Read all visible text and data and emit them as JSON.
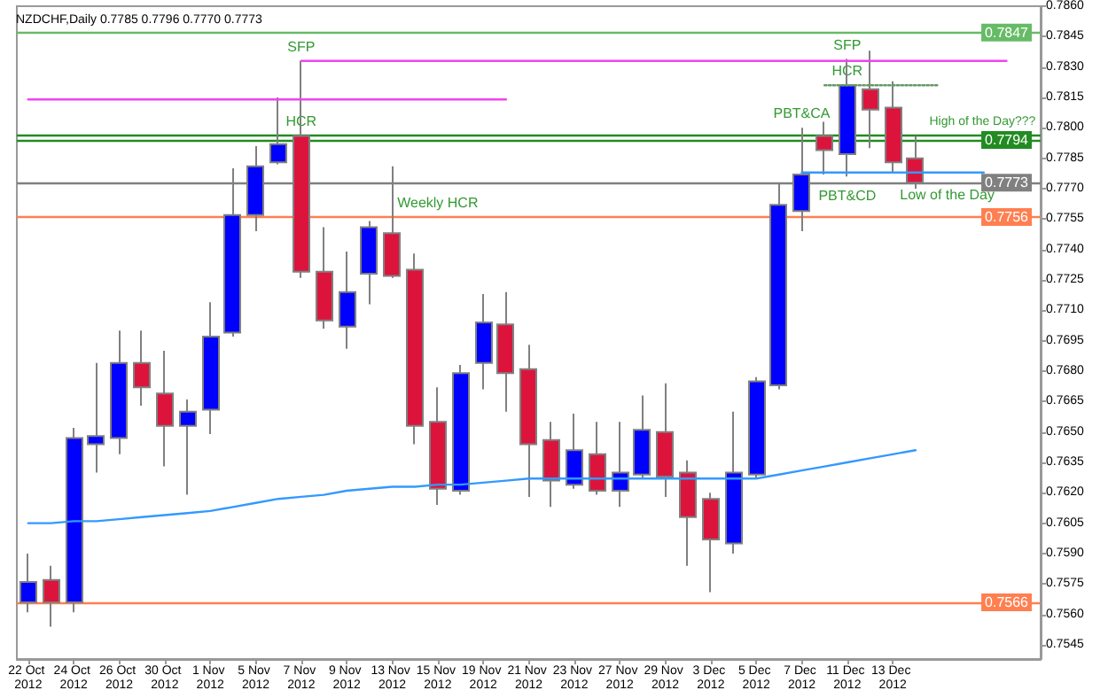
{
  "chart_data": {
    "type": "candlestick",
    "title": "NZDCHF,Daily 0.7785 0.7796 0.7770 0.7773",
    "categories": [
      "22 Oct 2012",
      null,
      "24 Oct 2012",
      null,
      "26 Oct 2012",
      null,
      "30 Oct 2012",
      null,
      "1 Nov 2012",
      null,
      "5 Nov 2012",
      null,
      "7 Nov 2012",
      null,
      "9 Nov 2012",
      null,
      "13 Nov 2012",
      null,
      "15 Nov 2012",
      null,
      "19 Nov 2012",
      null,
      "21 Nov 2012",
      null,
      "23 Nov 2012",
      null,
      "27 Nov 2012",
      null,
      "29 Nov 2012",
      null,
      "3 Dec 2012",
      null,
      "5 Dec 2012",
      null,
      "7 Dec 2012",
      null,
      "11 Dec 2012",
      null,
      "13 Dec 2012",
      null,
      null,
      null,
      null,
      null,
      null
    ],
    "ohlc": [
      [
        0.7566,
        0.759,
        0.7561,
        0.7576
      ],
      [
        0.7577,
        0.7584,
        0.7554,
        0.7566
      ],
      [
        0.7566,
        0.7652,
        0.7561,
        0.7647
      ],
      [
        0.7644,
        0.7684,
        0.763,
        0.7648
      ],
      [
        0.7647,
        0.77,
        0.7639,
        0.7684
      ],
      [
        0.7684,
        0.77,
        0.7663,
        0.7672
      ],
      [
        0.7669,
        0.769,
        0.7633,
        0.7653
      ],
      [
        0.7653,
        0.7666,
        0.7619,
        0.766
      ],
      [
        0.7661,
        0.7714,
        0.7649,
        0.7697
      ],
      [
        0.7699,
        0.778,
        0.7697,
        0.7757
      ],
      [
        0.7757,
        0.7791,
        0.7749,
        0.7781
      ],
      [
        0.7783,
        0.7815,
        0.7782,
        0.7792
      ],
      [
        0.7796,
        0.7833,
        0.7726,
        0.7729
      ],
      [
        0.7729,
        0.7751,
        0.7701,
        0.7705
      ],
      [
        0.7702,
        0.7739,
        0.7691,
        0.7719
      ],
      [
        0.7728,
        0.7754,
        0.7713,
        0.7751
      ],
      [
        0.7748,
        0.7781,
        0.7726,
        0.7727
      ],
      [
        0.773,
        0.7738,
        0.7644,
        0.7653
      ],
      [
        0.7655,
        0.7672,
        0.7614,
        0.7622
      ],
      [
        0.7621,
        0.7683,
        0.7619,
        0.7679
      ],
      [
        0.7684,
        0.7718,
        0.7671,
        0.7704
      ],
      [
        0.7703,
        0.7719,
        0.766,
        0.7679
      ],
      [
        0.7681,
        0.7693,
        0.7618,
        0.7644
      ],
      [
        0.7646,
        0.7655,
        0.7613,
        0.7626
      ],
      [
        0.7624,
        0.7659,
        0.7622,
        0.7641
      ],
      [
        0.7639,
        0.7655,
        0.7619,
        0.7621
      ],
      [
        0.7621,
        0.7655,
        0.7613,
        0.763
      ],
      [
        0.7629,
        0.7668,
        0.7627,
        0.7651
      ],
      [
        0.765,
        0.7674,
        0.7618,
        0.7628
      ],
      [
        0.763,
        0.7636,
        0.7584,
        0.7608
      ],
      [
        0.7617,
        0.762,
        0.7571,
        0.7597
      ],
      [
        0.7595,
        0.766,
        0.759,
        0.763
      ],
      [
        0.7629,
        0.7677,
        0.7627,
        0.7675
      ],
      [
        0.7673,
        0.7773,
        0.7671,
        0.7762
      ],
      [
        0.7759,
        0.78,
        0.7749,
        0.7777
      ],
      [
        0.7796,
        0.7803,
        0.7777,
        0.7789
      ],
      [
        0.7787,
        0.7834,
        0.7776,
        0.7821
      ],
      [
        0.7819,
        0.7838,
        0.779,
        0.7809
      ],
      [
        0.781,
        0.7823,
        0.7778,
        0.7783
      ],
      [
        0.7785,
        0.7796,
        0.777,
        0.7773
      ],
      null,
      null,
      null,
      null,
      null
    ],
    "colors": [
      "#0000ff",
      "#dc143c",
      "#0000ff",
      "#0000ff",
      "#0000ff",
      "#dc143c",
      "#dc143c",
      "#0000ff",
      "#0000ff",
      "#0000ff",
      "#0000ff",
      "#0000ff",
      "#dc143c",
      "#dc143c",
      "#0000ff",
      "#0000ff",
      "#dc143c",
      "#dc143c",
      "#dc143c",
      "#0000ff",
      "#0000ff",
      "#dc143c",
      "#dc143c",
      "#dc143c",
      "#0000ff",
      "#dc143c",
      "#0000ff",
      "#0000ff",
      "#dc143c",
      "#dc143c",
      "#dc143c",
      "#0000ff",
      "#0000ff",
      "#0000ff",
      "#0000ff",
      "#dc143c",
      "#0000ff",
      "#dc143c",
      "#dc143c",
      "#dc143c",
      null,
      null,
      null,
      null,
      null
    ],
    "series": [
      {
        "type": "line",
        "color": "#3399ff",
        "values": [
          0.7605,
          0.7605,
          0.7606,
          0.7606,
          0.7607,
          0.7608,
          0.7609,
          0.761,
          0.7611,
          0.7613,
          0.7615,
          0.7617,
          0.7618,
          0.7619,
          0.7621,
          0.7622,
          0.7623,
          0.7623,
          0.7624,
          0.7624,
          0.7625,
          0.7626,
          0.7627,
          0.7627,
          0.7627,
          0.7627,
          0.7627,
          0.7627,
          0.7627,
          0.7627,
          0.7627,
          0.7627,
          0.7627,
          0.7629,
          0.7631,
          0.7633,
          0.7635,
          0.7637,
          0.7639,
          0.7641,
          null,
          null,
          null,
          null,
          null
        ]
      },
      {
        "type": "line",
        "color": "#ee44ee",
        "values": [
          null,
          null,
          null,
          null,
          null,
          null,
          null,
          null,
          null,
          null,
          null,
          null,
          0.7833,
          0.7833,
          0.7833,
          0.7833,
          0.7833,
          0.7833,
          0.7833,
          0.7833,
          0.7833,
          0.7833,
          0.7833,
          0.7833,
          0.7833,
          0.7833,
          0.7833,
          0.7833,
          0.7833,
          0.7833,
          0.7833,
          0.7833,
          0.7833,
          0.7833,
          0.7833,
          0.7833,
          0.7833,
          0.7833,
          0.7833,
          0.7833,
          0.7833,
          0.7833,
          0.7833,
          0.7833,
          null
        ]
      },
      {
        "type": "line",
        "color": "#ee44ee",
        "values": [
          0.7814,
          0.7814,
          0.7814,
          0.7814,
          0.7814,
          0.7814,
          0.7814,
          0.7814,
          0.7814,
          0.7814,
          0.7814,
          0.7814,
          0.7814,
          0.7814,
          0.7814,
          0.7814,
          0.7814,
          0.7814,
          0.7814,
          0.7814,
          0.7814,
          0.7814,
          null,
          null,
          null,
          null,
          null,
          null,
          null,
          null,
          null,
          null,
          null,
          null,
          null,
          null,
          null,
          null,
          null,
          null,
          null,
          null,
          null,
          null,
          null
        ]
      },
      {
        "type": "line",
        "color": "#3399ff",
        "values": [
          null,
          null,
          null,
          null,
          null,
          null,
          null,
          null,
          null,
          null,
          null,
          null,
          null,
          null,
          null,
          null,
          null,
          null,
          null,
          null,
          null,
          null,
          null,
          null,
          null,
          null,
          null,
          null,
          null,
          null,
          null,
          null,
          null,
          null,
          0.7778,
          0.7778,
          0.7778,
          0.7778,
          0.7778,
          0.7778,
          0.7778,
          0.7778,
          0.7778,
          null,
          null
        ]
      },
      {
        "type": "line",
        "color": "#669966",
        "line_style": "dotted",
        "values": [
          null,
          null,
          null,
          null,
          null,
          null,
          null,
          null,
          null,
          null,
          null,
          null,
          null,
          null,
          null,
          null,
          null,
          null,
          null,
          null,
          null,
          null,
          null,
          null,
          null,
          null,
          null,
          null,
          null,
          null,
          null,
          null,
          null,
          null,
          null,
          0.7821,
          0.7821,
          0.7821,
          0.7821,
          0.7821,
          0.7821,
          null,
          null,
          null,
          null
        ]
      }
    ],
    "ylim": [
      0.7538,
      0.786
    ],
    "yticks": [
      0.7545,
      {
        "value": 0.756,
        "label": "0.7560"
      },
      0.7575,
      {
        "value": 0.759,
        "label": "0.7590"
      },
      0.7605,
      {
        "value": 0.762,
        "label": "0.7620"
      },
      0.7635,
      {
        "value": 0.765,
        "label": "0.7650"
      },
      0.7665,
      {
        "value": 0.768,
        "label": "0.7680"
      },
      0.7695,
      {
        "value": 0.771,
        "label": "0.7710"
      },
      0.7725,
      {
        "value": 0.774,
        "label": "0.7740"
      },
      0.7755,
      {
        "value": 0.777,
        "label": "0.7770"
      },
      0.7785,
      {
        "value": 0.78,
        "label": "0.7800"
      },
      0.7815,
      {
        "value": 0.783,
        "label": "0.7830"
      },
      0.7845,
      {
        "value": 0.786,
        "label": "0.7860"
      }
    ],
    "ref_lines": [
      {
        "axis": "y",
        "value": 0.7847,
        "label": "0.7847",
        "color": "#66bb66"
      },
      {
        "axis": "y",
        "value": 0.7796,
        "label": null,
        "color": "#228b22"
      },
      {
        "axis": "y",
        "value": 0.7794,
        "label": "0.7794",
        "color": "#228b22"
      },
      {
        "axis": "y",
        "value": 0.7773,
        "label": "0.7773",
        "color": "#808080"
      },
      {
        "axis": "y",
        "value": 0.7756,
        "label": "0.7756",
        "color": "#ff7f50"
      },
      {
        "axis": "y",
        "value": 0.7566,
        "label": "0.7566",
        "color": "#ff7f50"
      }
    ],
    "annotations": [
      {
        "text": "SFP",
        "x": "7 Nov 2012",
        "y": 0.7833
      },
      {
        "text": "HCR",
        "x": "7 Nov 2012",
        "y": 0.7796
      },
      {
        "text": "Weekly HCR",
        "x": "15 Nov 2012",
        "y": 0.7756
      },
      {
        "text": "PBT&CA",
        "x": "7 Dec 2012",
        "y": 0.78
      },
      {
        "text": "HCR",
        "x": "11 Dec 2012",
        "y": 0.7821
      },
      {
        "text": "SFP",
        "x": "11 Dec 2012",
        "y": 0.7834
      },
      {
        "text": "PBT&CD",
        "x": "11 Dec 2012",
        "y": 0.7778
      },
      {
        "text": "High of the Day???",
        "y": 0.7796
      },
      "Low of the Day"
    ],
    "marker": "none",
    "line_style": "solid",
    "grid": false
  }
}
